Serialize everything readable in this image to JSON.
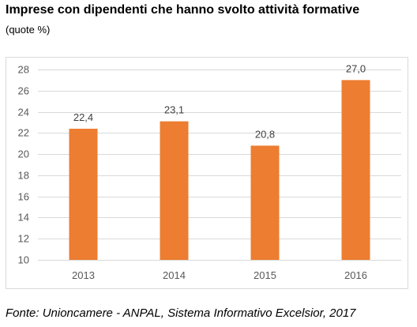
{
  "header": {
    "title": "Imprese con dipendenti che hanno svolto attività formative",
    "subtitle": "(quote %)"
  },
  "footer": {
    "source": "Fonte: Unioncamere - ANPAL, Sistema Informativo Excelsior, 2017"
  },
  "colors": {
    "bar": "#ED7D31",
    "grid": "#D9D9D9",
    "tick_text": "#595959",
    "data_label": "#404040"
  },
  "chart_data": {
    "type": "bar",
    "categories": [
      "2013",
      "2014",
      "2015",
      "2016"
    ],
    "values": [
      22.4,
      23.1,
      20.8,
      27.0
    ],
    "data_labels": [
      "22,4",
      "23,1",
      "20,8",
      "27,0"
    ],
    "title": "Imprese con dipendenti che hanno svolto attività formative",
    "subtitle": "(quote %)",
    "xlabel": "",
    "ylabel": "",
    "ylim": [
      10,
      28
    ],
    "yticks": [
      10,
      12,
      14,
      16,
      18,
      20,
      22,
      24,
      26,
      28
    ],
    "grid": true,
    "legend": "none"
  }
}
